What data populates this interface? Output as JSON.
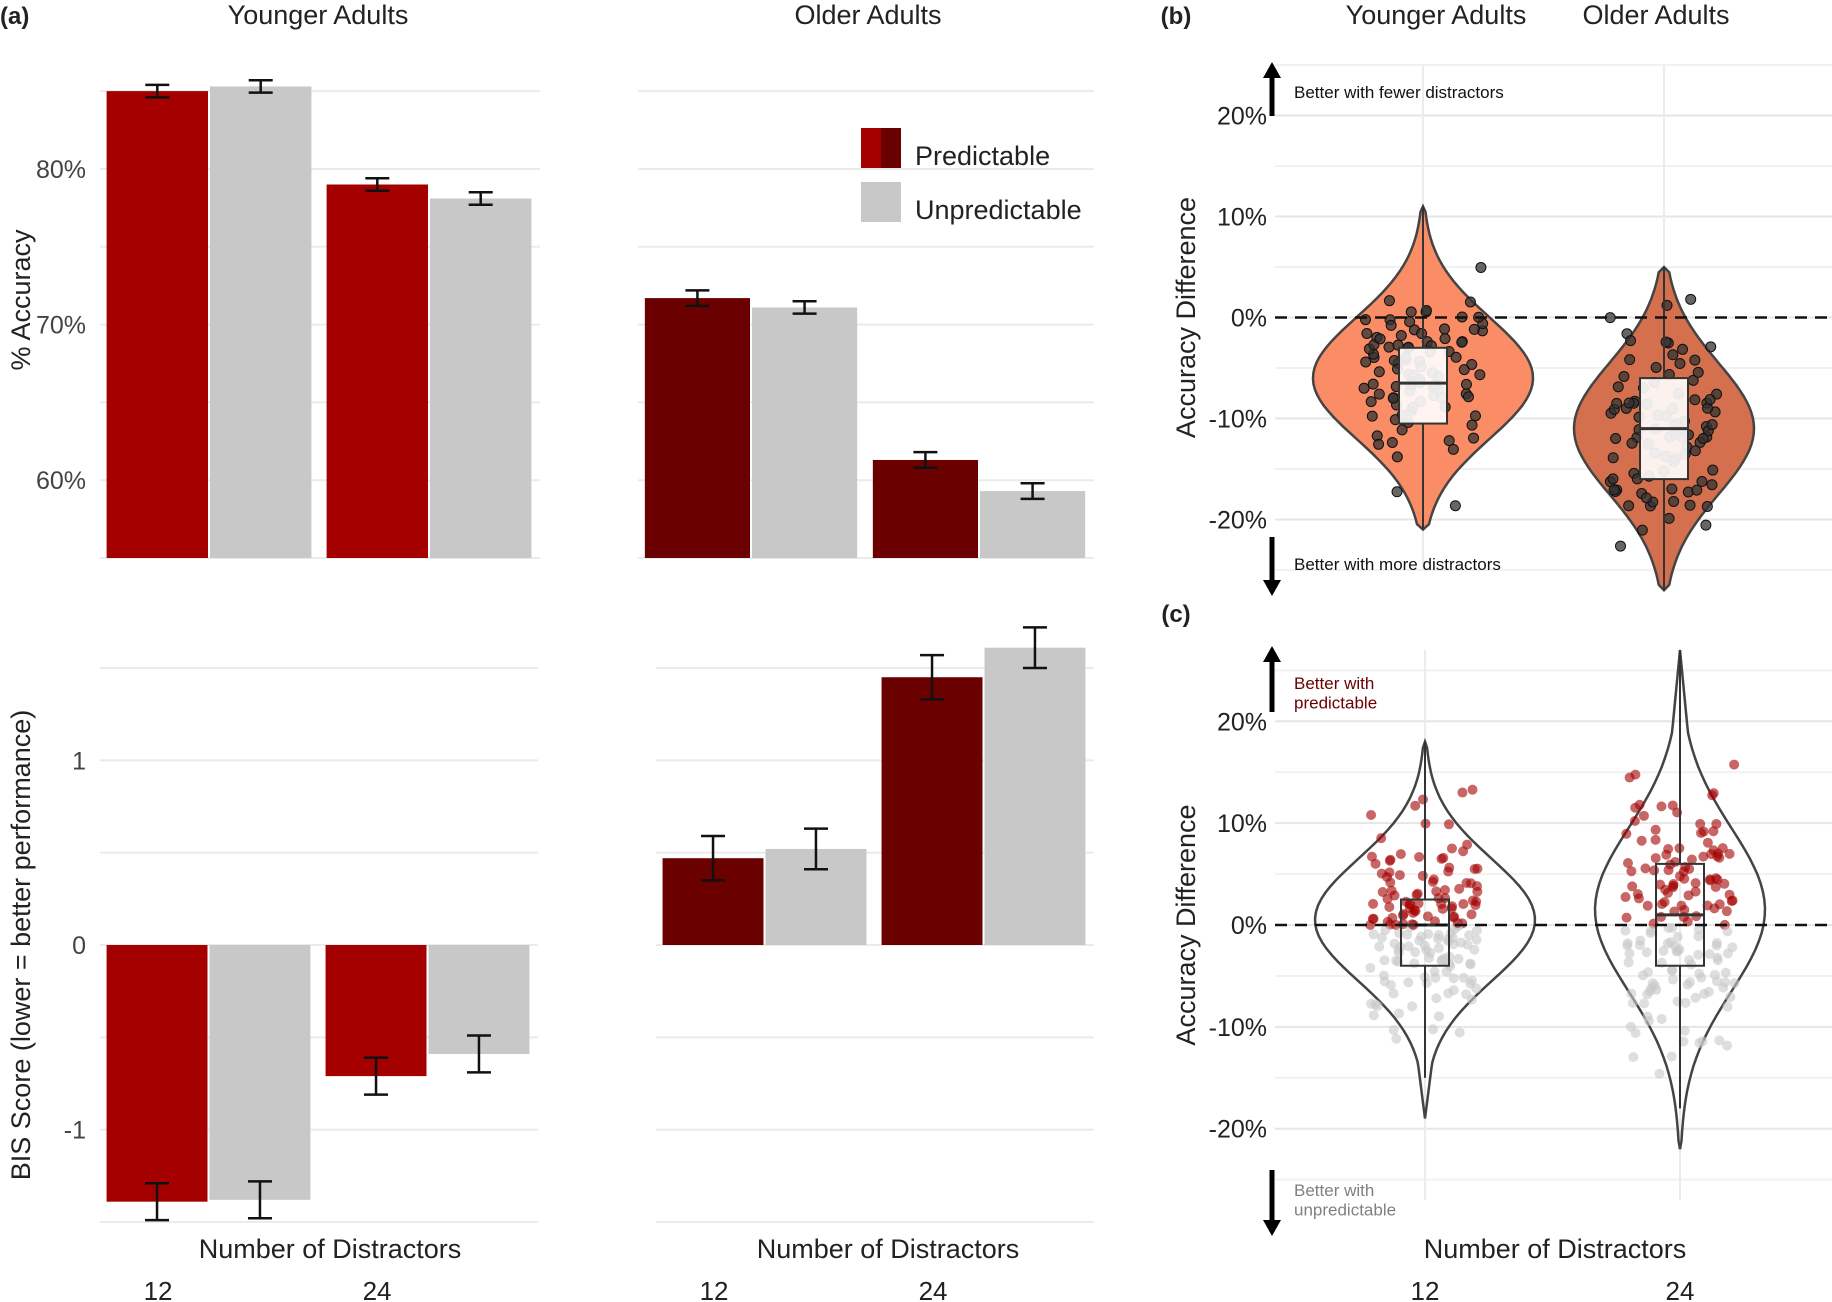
{
  "chart_data": [
    {
      "id": "a-top-younger",
      "type": "bar",
      "panel_label": "(a)",
      "title": "Younger Adults",
      "ylabel": "% Accuracy",
      "categories": [
        "12",
        "24"
      ],
      "ylim": [
        55,
        87
      ],
      "yticks": [
        60,
        70,
        80
      ],
      "ytick_labels": [
        "60%",
        "70%",
        "80%"
      ],
      "series": [
        {
          "name": "Predictable",
          "color": "#a40000",
          "values": [
            85.0,
            79.0
          ],
          "errors": [
            0.4,
            0.4
          ]
        },
        {
          "name": "Unpredictable",
          "color": "#c8c8c8",
          "values": [
            85.3,
            78.1
          ],
          "errors": [
            0.4,
            0.4
          ]
        }
      ]
    },
    {
      "id": "a-top-older",
      "type": "bar",
      "title": "Older Adults",
      "categories": [
        "12",
        "24"
      ],
      "ylim": [
        55,
        87
      ],
      "legend": {
        "position": "top-right",
        "items": [
          {
            "label": "Predictable",
            "color": "#a40000",
            "color2": "#6a0000"
          },
          {
            "label": "Unpredictable",
            "color": "#c8c8c8"
          }
        ]
      },
      "series": [
        {
          "name": "Predictable",
          "color": "#6a0000",
          "values": [
            71.7,
            61.3
          ],
          "errors": [
            0.5,
            0.5
          ]
        },
        {
          "name": "Unpredictable",
          "color": "#c8c8c8",
          "values": [
            71.1,
            59.3
          ],
          "errors": [
            0.4,
            0.5
          ]
        }
      ]
    },
    {
      "id": "a-bottom-younger",
      "type": "bar",
      "ylabel": "BIS Score (lower = better performance)",
      "xlabel": "Number of Distractors",
      "categories": [
        "12",
        "24"
      ],
      "ylim": [
        -1.5,
        1.5
      ],
      "yticks": [
        -1,
        0,
        1
      ],
      "ytick_labels": [
        "-1",
        "0",
        "1"
      ],
      "series": [
        {
          "name": "Predictable",
          "color": "#a40000",
          "values": [
            -1.39,
            -0.71
          ],
          "errors": [
            0.1,
            0.1
          ]
        },
        {
          "name": "Unpredictable",
          "color": "#c8c8c8",
          "values": [
            -1.38,
            -0.59
          ],
          "errors": [
            0.1,
            0.1
          ]
        }
      ]
    },
    {
      "id": "a-bottom-older",
      "type": "bar",
      "xlabel": "Number of Distractors",
      "categories": [
        "12",
        "24"
      ],
      "ylim": [
        -1.5,
        1.5
      ],
      "series": [
        {
          "name": "Predictable",
          "color": "#6a0000",
          "values": [
            0.47,
            1.45
          ],
          "errors": [
            0.12,
            0.12
          ]
        },
        {
          "name": "Unpredictable",
          "color": "#c8c8c8",
          "values": [
            0.52,
            1.61
          ],
          "errors": [
            0.11,
            0.11
          ]
        }
      ]
    },
    {
      "id": "b",
      "type": "violin",
      "panel_label": "(b)",
      "categories": [
        "Younger Adults",
        "Older Adults"
      ],
      "ylabel": "Accuracy Difference",
      "ylim": [
        -25,
        25
      ],
      "yticks": [
        -20,
        -10,
        0,
        10,
        20
      ],
      "ytick_labels": [
        "-20%",
        "-10%",
        "0%",
        "10%",
        "20%"
      ],
      "reference_line": 0,
      "annotations": {
        "up": "Better with fewer distractors",
        "down": "Better with more distractors"
      },
      "groups": [
        {
          "name": "Younger Adults",
          "fill": "#fa8c66",
          "min": -21,
          "max": 11,
          "q1": -10.5,
          "median": -6.5,
          "q3": -3,
          "whisker_low": -21,
          "whisker_high": 11
        },
        {
          "name": "Older Adults",
          "fill": "#d4704e",
          "min": -27,
          "max": 5,
          "q1": -16,
          "median": -11,
          "q3": -6,
          "whisker_low": -27,
          "whisker_high": 5
        }
      ]
    },
    {
      "id": "c",
      "type": "violin",
      "panel_label": "(c)",
      "categories": [
        "12",
        "24"
      ],
      "xlabel": "Number of Distractors",
      "ylabel": "Accuracy Difference",
      "ylim": [
        -27,
        27
      ],
      "yticks": [
        -20,
        -10,
        0,
        10,
        20
      ],
      "ytick_labels": [
        "-20%",
        "-10%",
        "0%",
        "10%",
        "20%"
      ],
      "reference_line": 0,
      "annotations": {
        "up": "Better with\npredictable",
        "down": "Better with\nunpredictable",
        "up_color": "#6a0000",
        "down_color": "#808080"
      },
      "point_colors": {
        "positive": "#a40000",
        "negative": "#c8c8c8"
      },
      "groups": [
        {
          "name": "12",
          "min": -19,
          "max": 18,
          "q1": -4,
          "median": 0,
          "q3": 2.5,
          "whisker_low": -15,
          "whisker_high": 18
        },
        {
          "name": "24",
          "min": -22,
          "max": 27,
          "q1": -4,
          "median": 1,
          "q3": 6,
          "whisker_low": -18,
          "whisker_high": 27
        }
      ]
    }
  ]
}
